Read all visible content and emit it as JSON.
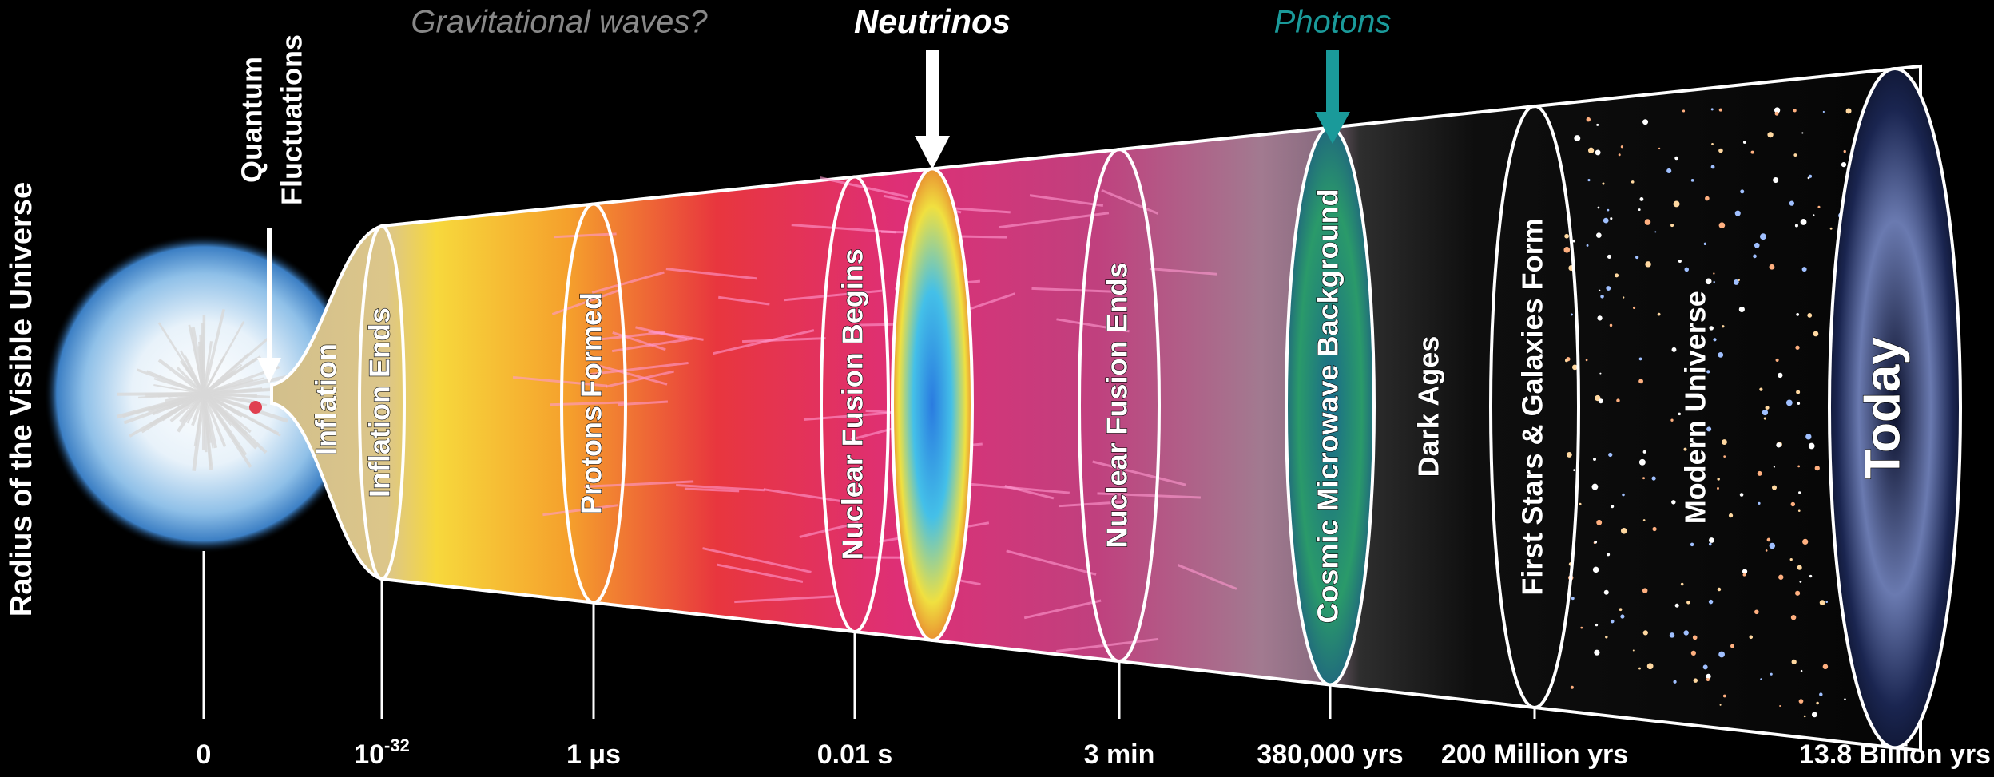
{
  "axis_title": "Radius of the Visible Universe",
  "quantum_fluctuations": [
    "Quantum",
    "Fluctuations"
  ],
  "messengers": {
    "gravitational_waves": "Gravitational waves?",
    "neutrinos": "Neutrinos",
    "photons": "Photons"
  },
  "stages": [
    "Inflation",
    "Inflation Ends",
    "Protons Formed",
    "Nuclear Fusion Begins",
    "Nuclear Fusion Ends",
    "Cosmic Microwave Background",
    "Dark Ages",
    "First Stars & Galaxies Form",
    "Modern Universe",
    "Today"
  ],
  "timeline": [
    "0",
    {
      "base": "10",
      "exponent": "-32"
    },
    "1 μs",
    "0.01 s",
    "3 min",
    "380,000 yrs",
    "200 Million yrs",
    "13.8 Billion yrs"
  ]
}
